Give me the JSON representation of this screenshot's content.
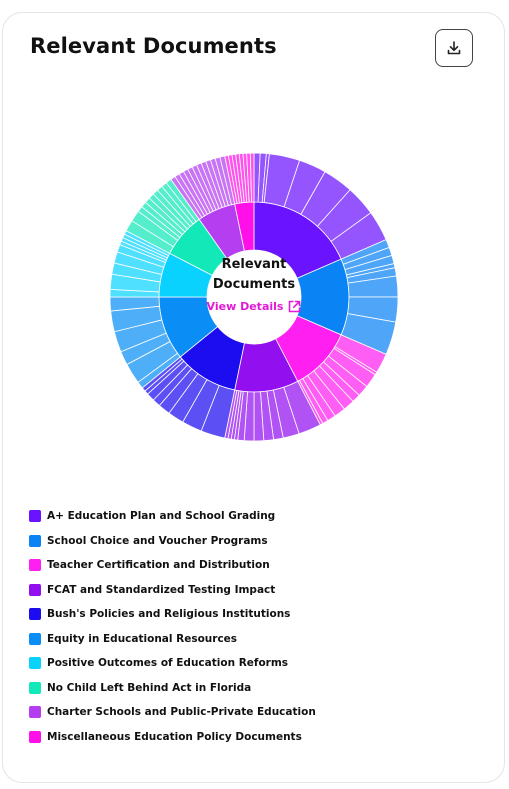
{
  "header": {
    "title": "Relevant Documents",
    "download_icon": "download-icon"
  },
  "center": {
    "line1": "Relevant",
    "line2": "Documents",
    "link_label": "View Details",
    "link_icon": "external-link-icon"
  },
  "chart_data": {
    "type": "sunburst",
    "title": "Relevant Documents",
    "legend_position": "bottom",
    "categories": [
      {
        "name": "A+ Education Plan and School Grading",
        "color": "#6a13ff",
        "value": 17,
        "children": [
          2,
          2,
          1,
          10,
          9,
          10,
          10,
          10
        ]
      },
      {
        "name": "School Choice and Voucher Programs",
        "color": "#0a84f5",
        "value": 12,
        "children": [
          2,
          2,
          2,
          1,
          2,
          5,
          6,
          8
        ]
      },
      {
        "name": "Teacher Certification and Distribution",
        "color": "#ff1ff0",
        "value": 10,
        "children": [
          7,
          1,
          5,
          4,
          3,
          4,
          4,
          3,
          2,
          1
        ]
      },
      {
        "name": "FCAT and Standardized Testing Impact",
        "color": "#9210f0",
        "value": 10,
        "children": [
          7,
          5,
          3,
          3,
          3,
          3,
          2,
          1,
          1,
          1,
          1
        ]
      },
      {
        "name": "Bush's Policies and Religious Institutions",
        "color": "#1c0cf0",
        "value": 10,
        "children": [
          6,
          5,
          4,
          3,
          2,
          2,
          1,
          1
        ]
      },
      {
        "name": "Equity in Educational Resources",
        "color": "#0a8ef5",
        "value": 10,
        "children": [
          2,
          6,
          4,
          6,
          6,
          4
        ]
      },
      {
        "name": "Positive Outcomes of Education Reforms",
        "color": "#0ad2ff",
        "value": 7,
        "children": [
          2,
          4,
          3,
          3,
          2,
          1,
          1,
          1,
          1
        ]
      },
      {
        "name": "No Child Left Behind Act in Florida",
        "color": "#12e8b8",
        "value": 7,
        "children": [
          2,
          2,
          1,
          1,
          1,
          1,
          1,
          1,
          1,
          1
        ]
      },
      {
        "name": "Charter Schools and Public-Private Education",
        "color": "#b43ef0",
        "value": 6,
        "children": [
          1,
          1,
          1,
          1,
          1,
          1,
          1,
          1,
          1,
          1,
          1,
          1
        ]
      },
      {
        "name": "Miscellaneous Education Policy Documents",
        "color": "#ff10e8",
        "value": 3,
        "children": [
          1,
          1,
          1,
          1,
          1,
          1,
          1,
          1
        ]
      }
    ]
  }
}
